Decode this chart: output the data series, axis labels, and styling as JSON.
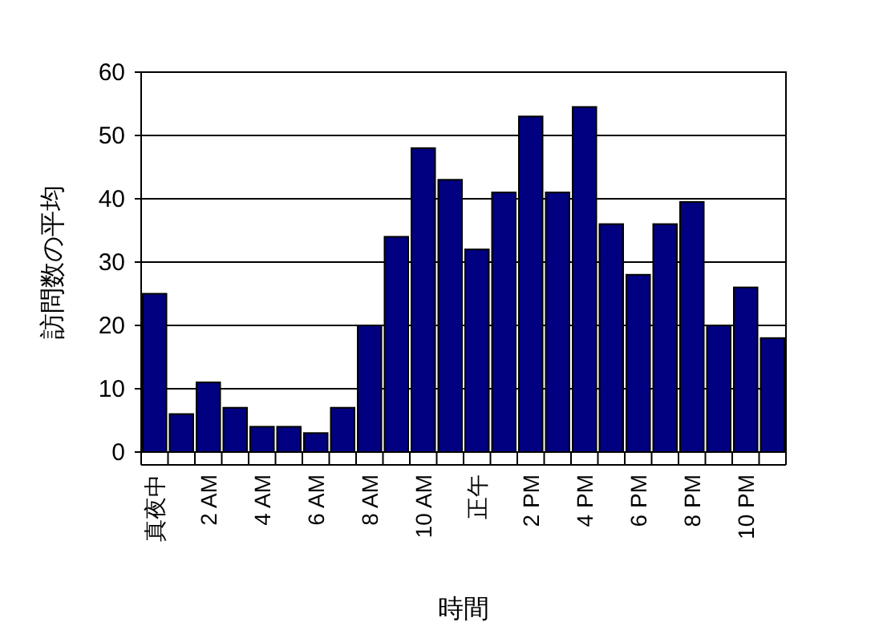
{
  "chart_data": {
    "type": "bar",
    "xlabel": "時間",
    "ylabel": "訪問数の平均",
    "categories": [
      "真夜中",
      null,
      "2 AM",
      null,
      "4 AM",
      null,
      "6 AM",
      null,
      "8 AM",
      null,
      "10 AM",
      null,
      "正午",
      null,
      "2 PM",
      null,
      "4 PM",
      null,
      "6 PM",
      null,
      "8 PM",
      null,
      "10 PM",
      null
    ],
    "values": [
      25,
      6,
      11,
      7,
      4,
      4,
      3,
      7,
      20,
      34,
      48,
      43,
      32,
      41,
      53,
      41,
      54.5,
      36,
      28,
      36,
      39.5,
      20,
      26,
      18
    ],
    "color": "#000080",
    "ylim": [
      0,
      60
    ],
    "yticks": [
      0,
      10,
      20,
      30,
      40,
      50,
      60
    ],
    "grid": "y"
  }
}
